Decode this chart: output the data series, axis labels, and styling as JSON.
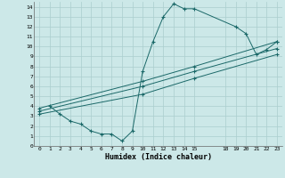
{
  "xlabel": "Humidex (Indice chaleur)",
  "bg_color": "#cce8e8",
  "grid_color": "#aacece",
  "line_color": "#1a6868",
  "xlim": [
    -0.5,
    23.5
  ],
  "ylim": [
    0,
    14.5
  ],
  "xticks": [
    0,
    1,
    2,
    3,
    4,
    5,
    6,
    7,
    8,
    9,
    10,
    11,
    12,
    13,
    14,
    15,
    18,
    19,
    20,
    21,
    22,
    23
  ],
  "yticks": [
    0,
    1,
    2,
    3,
    4,
    5,
    6,
    7,
    8,
    9,
    10,
    11,
    12,
    13,
    14
  ],
  "series_jagged": {
    "x": [
      1,
      2,
      3,
      4,
      5,
      6,
      7,
      8,
      9,
      10,
      11,
      12,
      13,
      14,
      15,
      19,
      20,
      21,
      22,
      23
    ],
    "y": [
      4.0,
      3.2,
      2.5,
      2.2,
      1.5,
      1.2,
      1.2,
      0.5,
      1.5,
      7.5,
      10.5,
      13.0,
      14.3,
      13.8,
      13.8,
      12.0,
      11.3,
      9.2,
      9.7,
      10.5
    ]
  },
  "series_linear": [
    {
      "x": [
        0,
        10,
        15,
        23
      ],
      "y": [
        3.8,
        6.5,
        8.0,
        10.5
      ]
    },
    {
      "x": [
        0,
        10,
        15,
        23
      ],
      "y": [
        3.5,
        6.0,
        7.5,
        9.8
      ]
    },
    {
      "x": [
        0,
        10,
        15,
        23
      ],
      "y": [
        3.2,
        5.2,
        6.8,
        9.2
      ]
    }
  ]
}
